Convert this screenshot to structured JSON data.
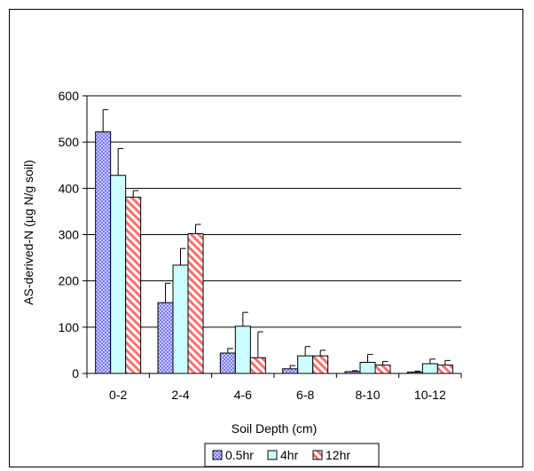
{
  "chart_data": {
    "type": "bar",
    "title": "",
    "xlabel": "Soil Depth (cm)",
    "ylabel": "AS-derived-N (µg N/g soil)",
    "categories": [
      "0-2",
      "2-4",
      "4-6",
      "6-8",
      "8-10",
      "10-12"
    ],
    "series": [
      {
        "name": "0.5hr",
        "values": [
          522,
          153,
          44,
          10,
          4,
          3
        ],
        "errors": [
          48,
          42,
          10,
          7,
          2,
          2
        ],
        "color": "#8c8cf0",
        "pattern": "checker"
      },
      {
        "name": "4hr",
        "values": [
          428,
          234,
          102,
          38,
          24,
          21
        ],
        "errors": [
          58,
          36,
          30,
          20,
          17,
          10
        ],
        "color": "#ccffff",
        "pattern": "solid"
      },
      {
        "name": "12hr",
        "values": [
          381,
          302,
          34,
          38,
          18,
          18
        ],
        "errors": [
          14,
          20,
          56,
          12,
          8,
          10
        ],
        "color": "#ff8c8c",
        "pattern": "diagonal"
      }
    ],
    "ylim": [
      0,
      600
    ],
    "yticks": [
      0,
      100,
      200,
      300,
      400,
      500,
      600
    ],
    "grid": true,
    "legend_position": "bottom"
  }
}
